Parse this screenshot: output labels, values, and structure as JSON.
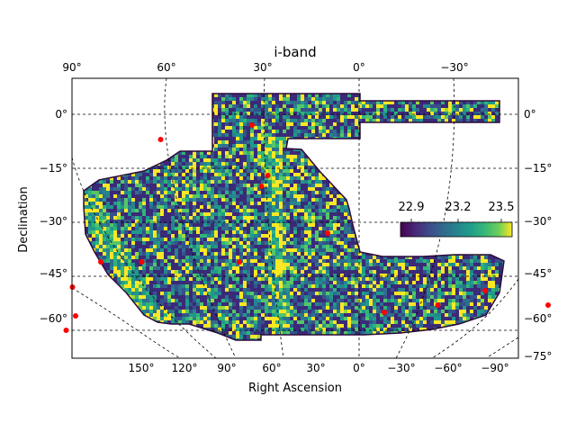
{
  "chart_data": {
    "type": "heatmap",
    "title": "i-band",
    "xlabel": "Right Ascension",
    "ylabel": "Declination",
    "top_ticks": [
      "90°",
      "60°",
      "30°",
      "0°",
      "−30°"
    ],
    "bottom_ticks": [
      "150°",
      "120°",
      "90°",
      "60°",
      "30°",
      "0°",
      "−30°",
      "−60°",
      "−90°"
    ],
    "left_ticks": [
      "0°",
      "−15°",
      "−30°",
      "−45°",
      "−60°"
    ],
    "right_ticks": [
      "0°",
      "−15°",
      "−30°",
      "−45°",
      "−60°",
      "−75°"
    ],
    "dec_lines": [
      0,
      -15,
      -30,
      -45,
      -60
    ],
    "colorbar": {
      "ticks": [
        "22.9",
        "23.2",
        "23.5"
      ],
      "range": [
        22.8,
        23.6
      ],
      "colormap": "viridis"
    },
    "markers_color": "#ff0000",
    "marker_points": [
      [
        34,
        -3
      ],
      [
        63,
        -7
      ],
      [
        29,
        -17
      ],
      [
        31,
        -20
      ],
      [
        10,
        -33
      ],
      [
        82,
        -41
      ],
      [
        69,
        -41
      ],
      [
        38,
        -41
      ],
      [
        91,
        -48
      ],
      [
        90,
        -56
      ],
      [
        93,
        -60
      ],
      [
        -8,
        -55
      ],
      [
        -25,
        -53
      ],
      [
        -40,
        -49
      ],
      [
        -60,
        -53
      ]
    ]
  }
}
